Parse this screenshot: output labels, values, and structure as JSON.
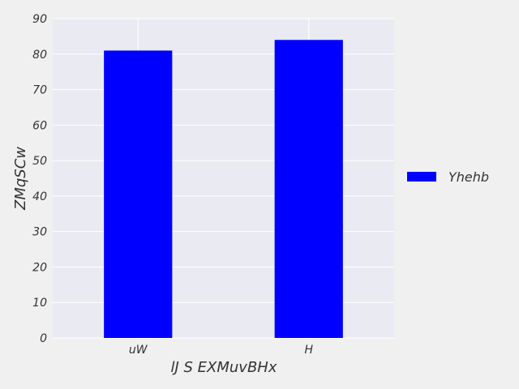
{
  "chart_data": {
    "type": "bar",
    "categories": [
      "uW",
      "H"
    ],
    "series": [
      {
        "name": "Yhehb",
        "values": [
          81,
          84
        ],
        "color": "#0000ff"
      }
    ],
    "title": "",
    "xlabel": "lJ S EXMuvBHx",
    "ylabel": "ZMqSCw",
    "ylim": [
      0,
      90
    ],
    "yticks": [
      0,
      10,
      20,
      30,
      40,
      50,
      60,
      70,
      80,
      90
    ],
    "grid": true,
    "legend_position": "right",
    "plot_background": "#eaeaf2",
    "grid_color": "#ffffff"
  }
}
